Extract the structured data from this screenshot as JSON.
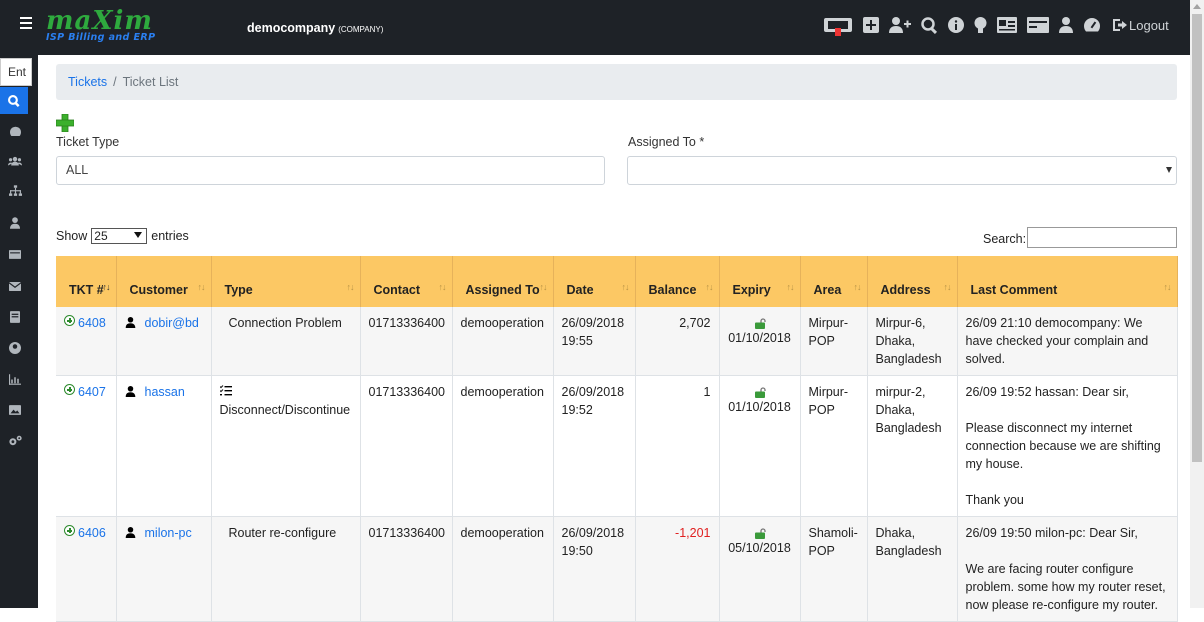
{
  "header": {
    "logo_main": "maXim",
    "logo_sub": "ISP Billing and ERP",
    "company_name": "democompany",
    "company_tag": "(COMPANY)",
    "icons": [
      "ticket-machine-icon",
      "plus-square-icon",
      "user-plus-icon",
      "search-icon",
      "info-icon",
      "lightbulb-icon",
      "id-card-icon",
      "card-icon",
      "user-tie-icon",
      "dashboard-gauge-icon"
    ],
    "logout_label": "Logout"
  },
  "sidebar": {
    "search_value": "Ent",
    "items": [
      "dashboard-icon",
      "users-icon",
      "sitemap-icon",
      "user-icon",
      "billing-icon",
      "mail-icon",
      "document-icon",
      "profile-icon",
      "chart-icon",
      "image-icon",
      "settings-icon"
    ]
  },
  "breadcrumb": {
    "parent": "Tickets",
    "current": "Ticket List"
  },
  "filters": {
    "ticket_type_label": "Ticket Type",
    "ticket_type_value": "ALL",
    "assigned_to_label": "Assigned To *",
    "assigned_to_value": ""
  },
  "table_controls": {
    "show_label": "Show",
    "entries_value": "25",
    "entries_label": "entries",
    "search_label": "Search:"
  },
  "table": {
    "headers": [
      "TKT #",
      "Customer",
      "Type",
      "Contact",
      "Assigned To",
      "Date",
      "Balance",
      "Expiry",
      "Area",
      "Address",
      "Last Comment"
    ],
    "rows": [
      {
        "ticket": "6408",
        "customer": "dobir@bd",
        "type": "Connection Problem",
        "contact": "01713336400",
        "assigned_to": "demooperation",
        "date": "26/09/2018 19:55",
        "balance": "2,702",
        "expiry": "01/10/2018",
        "area": "Mirpur-POP",
        "address": "Mirpur-6, Dhaka, Bangladesh",
        "comment": [
          "26/09 21:10 democompany: We have checked your complain and solved."
        ]
      },
      {
        "ticket": "6407",
        "customer": "hassan",
        "type": "Disconnect/Discontinue",
        "contact": "01713336400",
        "assigned_to": "demooperation",
        "date": "26/09/2018 19:52",
        "balance": "1",
        "expiry": "01/10/2018",
        "area": "Mirpur-POP",
        "address": "mirpur-2, Dhaka, Bangladesh",
        "comment": [
          "26/09 19:52 hassan: Dear sir,",
          "Please disconnect my internet connection because we are shifting my house.",
          "Thank you"
        ]
      },
      {
        "ticket": "6406",
        "customer": "milon-pc",
        "type": "Router re-configure",
        "contact": "01713336400",
        "assigned_to": "demooperation",
        "date": "26/09/2018 19:50",
        "balance": "-1,201",
        "expiry": "05/10/2018",
        "area": "Shamoli-POP",
        "address": "Dhaka, Bangladesh",
        "comment": [
          "26/09 19:50 milon-pc: Dear Sir,",
          "We are facing router configure problem. some how my router reset, now please re-configure my router."
        ]
      }
    ]
  },
  "colors": {
    "topbar": "#1e2227",
    "header_row": "#fcc864",
    "link": "#1a73e8",
    "negative": "#e02020",
    "brand_green": "#2eaa3e"
  }
}
